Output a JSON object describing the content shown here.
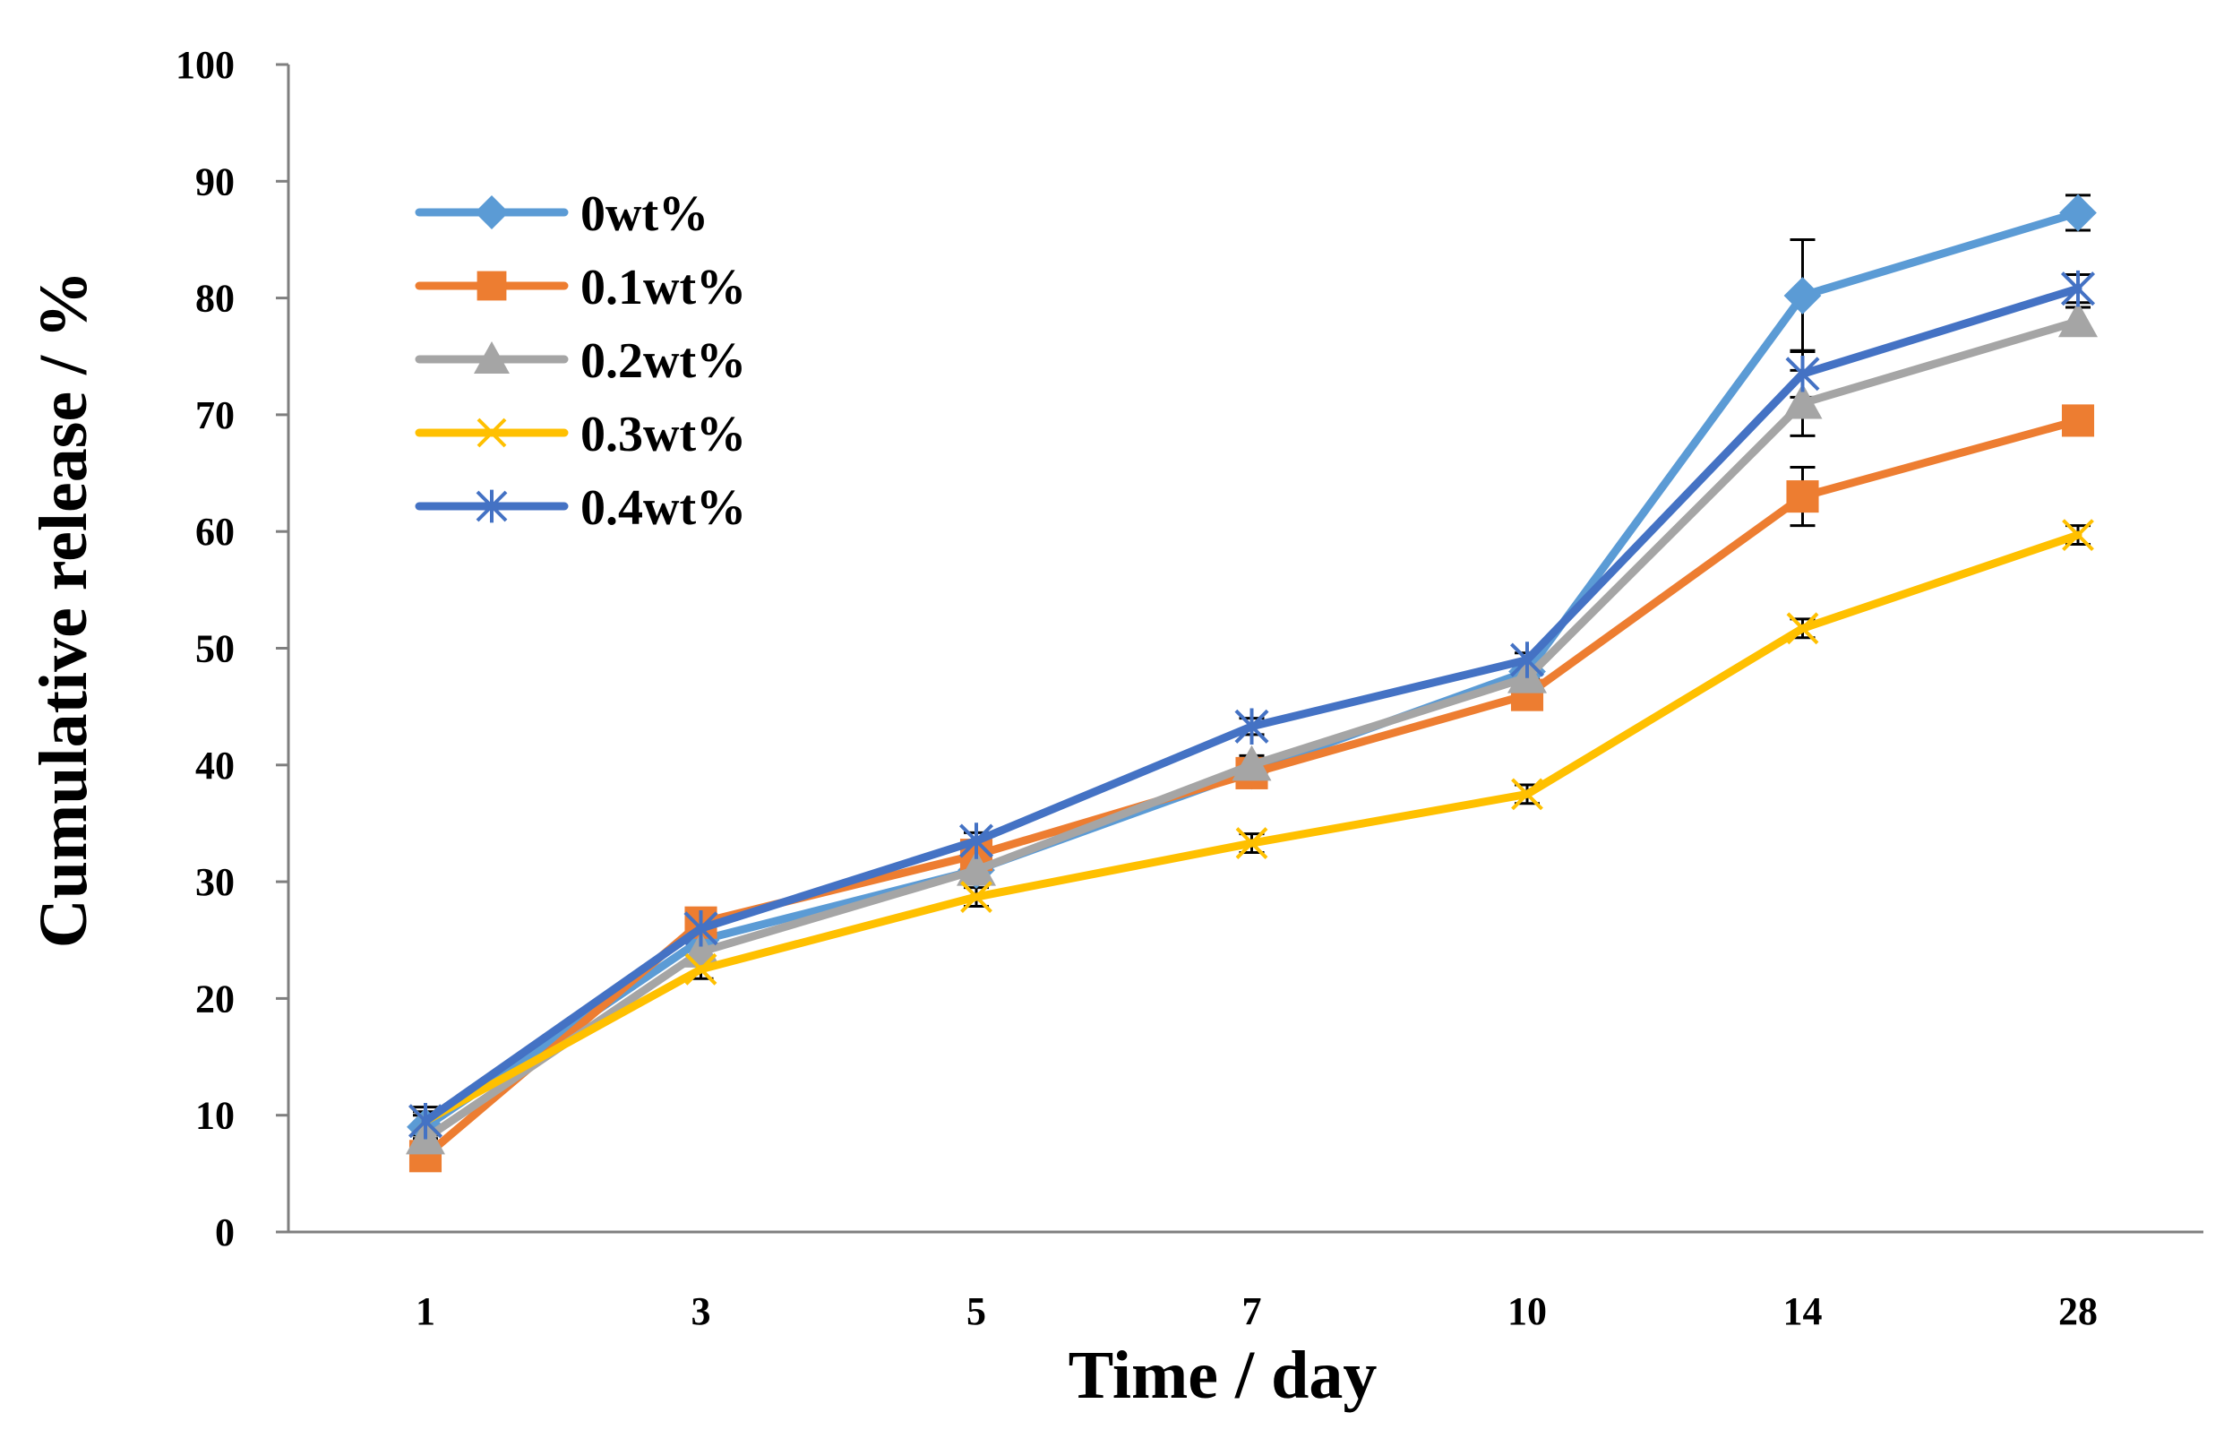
{
  "chart_data": {
    "type": "line",
    "xlabel": "Time / day",
    "ylabel": "Cumulative release / %",
    "categories": [
      "1",
      "3",
      "5",
      "7",
      "10",
      "14",
      "28"
    ],
    "ylim": [
      0,
      100
    ],
    "yticks": [
      0,
      10,
      20,
      30,
      40,
      50,
      60,
      70,
      80,
      90,
      100
    ],
    "grid": false,
    "legend_position": "top-left",
    "series": [
      {
        "name": "0wt%",
        "color": "#5B9BD5",
        "marker": "diamond",
        "values": [
          9.0,
          25.0,
          31.0,
          39.5,
          48.0,
          80.2,
          87.3
        ],
        "errors": [
          1.0,
          0.6,
          0.6,
          0.8,
          0.6,
          4.8,
          1.5
        ]
      },
      {
        "name": "0.1wt%",
        "color": "#ED7D31",
        "marker": "square",
        "values": [
          6.5,
          26.5,
          32.3,
          39.3,
          46.0,
          63.0,
          69.5
        ],
        "errors": [
          0.8,
          0.8,
          0.7,
          0.8,
          0.6,
          2.5,
          1.0
        ]
      },
      {
        "name": "0.2wt%",
        "color": "#A5A5A5",
        "marker": "triangle",
        "values": [
          8.0,
          24.0,
          31.0,
          40.0,
          47.5,
          71.0,
          78.0
        ],
        "errors": [
          0.8,
          0.8,
          0.7,
          0.8,
          0.6,
          2.8,
          1.2
        ]
      },
      {
        "name": "0.3wt%",
        "color": "#FFC000",
        "marker": "x",
        "values": [
          9.5,
          22.5,
          28.7,
          33.3,
          37.5,
          51.7,
          59.7
        ],
        "errors": [
          0.8,
          0.8,
          0.8,
          0.8,
          0.8,
          0.8,
          0.8
        ]
      },
      {
        "name": "0.4wt%",
        "color": "#4472C4",
        "marker": "star",
        "values": [
          9.5,
          26.0,
          33.5,
          43.3,
          49.0,
          73.5,
          80.8
        ],
        "errors": [
          1.2,
          0.8,
          0.7,
          0.7,
          0.6,
          2.0,
          1.2
        ]
      }
    ]
  }
}
